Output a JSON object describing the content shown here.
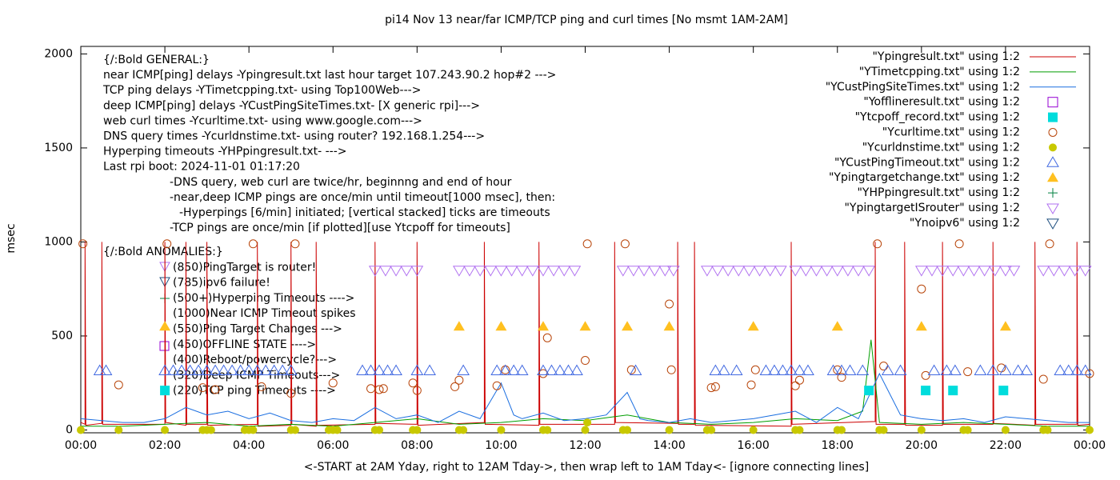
{
  "chart_data": {
    "type": "line",
    "title": "pi14 Nov 13  near/far ICMP/TCP ping and curl times [No msmt 1AM-2AM]",
    "x_label": "<-START at 2AM Yday, right to 12AM Tday->, then wrap left to 1AM Tday<- [ignore connecting lines]",
    "y_label": "msec",
    "xlim": [
      0,
      24
    ],
    "ylim": [
      -15,
      2040
    ],
    "xticks": [
      {
        "value": 0,
        "label": "00:00"
      },
      {
        "value": 2,
        "label": "02:00"
      },
      {
        "value": 4,
        "label": "04:00"
      },
      {
        "value": 6,
        "label": "06:00"
      },
      {
        "value": 8,
        "label": "08:00"
      },
      {
        "value": 10,
        "label": "10:00"
      },
      {
        "value": 12,
        "label": "12:00"
      },
      {
        "value": 14,
        "label": "14:00"
      },
      {
        "value": 16,
        "label": "16:00"
      },
      {
        "value": 18,
        "label": "18:00"
      },
      {
        "value": 20,
        "label": "20:00"
      },
      {
        "value": 22,
        "label": "22:00"
      },
      {
        "value": 24,
        "label": "00:00"
      }
    ],
    "yticks": [
      0,
      500,
      1000,
      1500,
      2000
    ],
    "legend": "top-right",
    "notes": [
      "{/:Bold GENERAL:}",
      "near ICMP[ping] delays -Ypingresult.txt last hour target 107.243.90.2 hop#2 --->",
      "TCP ping delays -YTimetcpping.txt- using Top100Web--->",
      "deep ICMP[ping] delays -YCustPingSiteTimes.txt- [X generic rpi]--->",
      "web curl times -Ycurltime.txt- using www.google.com--->",
      "DNS query times -Ycurldnstime.txt- using router? 192.168.1.254--->",
      "Hyperping timeouts -YHPpingresult.txt- --->",
      "Last rpi boot: 2024-11-01 01:17:20",
      "-DNS query, web curl are twice/hr, beginnng and end of hour",
      "-near,deep ICMP pings are once/min until timeout[1000 msec], then:",
      "-Hyperpings [6/min] initiated; [vertical stacked] ticks are timeouts",
      "-TCP pings are once/min [if plotted][use Ytcpoff for timeouts]"
    ],
    "anomalies": [
      "{/:Bold ANOMALIES:}",
      "(850)PingTarget is router!",
      "(785)ipv6 failure!",
      "(500+)Hyperping Timeouts ---->",
      "(1000)Near ICMP Timeout spikes",
      "(550)Ping Target Changes --->",
      "(450)OFFLINE STATE ---->",
      "(400)Reboot/powercycle?--->",
      "(320)Deep ICMP Timeouts--->",
      "(220)TCP ping Timeouts ---->"
    ],
    "series": [
      {
        "name": "\"Ypingresult.txt\" using 1:2",
        "color": "#cc0000",
        "marker": "line",
        "x": [
          0,
          0.1,
          0.1,
          0.12,
          0.5,
          0.5,
          0.52,
          2.0,
          2.0,
          2.02,
          2.5,
          2.5,
          2.52,
          3.0,
          3.0,
          3.02,
          4.2,
          4.2,
          4.22,
          5.0,
          5.0,
          5.02,
          5.6,
          5.6,
          5.62,
          7.0,
          7.0,
          7.02,
          8.0,
          8.0,
          8.02,
          9.6,
          9.6,
          9.62,
          10.9,
          10.9,
          10.92,
          12.7,
          12.7,
          12.72,
          14.2,
          14.2,
          14.22,
          14.6,
          14.6,
          14.62,
          16.9,
          16.9,
          16.92,
          18.9,
          18.9,
          18.92,
          19.6,
          19.6,
          19.62,
          20.5,
          20.5,
          20.52,
          21.7,
          21.7,
          21.72,
          22.7,
          22.7,
          22.72,
          23.7,
          23.7,
          23.72,
          24
        ],
        "values": [
          40,
          30,
          1000,
          25,
          35,
          1000,
          30,
          30,
          1000,
          40,
          25,
          1000,
          30,
          30,
          1000,
          25,
          30,
          1000,
          20,
          25,
          1000,
          30,
          20,
          1000,
          25,
          30,
          1000,
          35,
          30,
          1000,
          25,
          40,
          1000,
          30,
          25,
          1000,
          30,
          30,
          1000,
          40,
          35,
          1000,
          30,
          30,
          1000,
          25,
          20,
          1000,
          30,
          45,
          1000,
          30,
          30,
          1000,
          25,
          25,
          1000,
          30,
          30,
          1000,
          35,
          25,
          1000,
          30,
          30,
          1000,
          25,
          30
        ]
      },
      {
        "name": "\"YTimetcpping.txt\" using 1:2",
        "color": "#009e00",
        "marker": "line",
        "x": [
          0,
          1,
          2,
          3,
          4,
          5,
          6,
          7,
          8,
          9,
          10,
          11,
          12,
          13,
          14,
          15,
          16,
          17,
          18,
          18.6,
          18.8,
          19,
          20,
          21,
          22,
          23,
          24
        ],
        "values": [
          20,
          20,
          30,
          40,
          20,
          30,
          20,
          40,
          60,
          30,
          40,
          60,
          50,
          80,
          40,
          30,
          40,
          60,
          50,
          100,
          480,
          40,
          30,
          40,
          30,
          20,
          20
        ]
      },
      {
        "name": "\"YCustPingSiteTimes.txt\" using 1:2",
        "color": "#1a6ee0",
        "marker": "line",
        "x": [
          0,
          0.5,
          1,
          1.5,
          2,
          2.5,
          3,
          3.5,
          4,
          4.5,
          5,
          5.5,
          6,
          6.5,
          7,
          7.5,
          8,
          8.5,
          9,
          9.5,
          10,
          10.3,
          10.5,
          11,
          11.5,
          12,
          12.5,
          13,
          13.3,
          13.5,
          14,
          14.5,
          15,
          15.5,
          16,
          16.5,
          17,
          17.5,
          18,
          18.5,
          19,
          19.5,
          20,
          20.5,
          21,
          21.5,
          22,
          22.5,
          23,
          23.5,
          24
        ],
        "values": [
          60,
          50,
          40,
          40,
          60,
          120,
          80,
          100,
          60,
          90,
          50,
          40,
          60,
          50,
          120,
          60,
          80,
          40,
          100,
          60,
          250,
          80,
          60,
          90,
          50,
          60,
          80,
          200,
          60,
          50,
          40,
          60,
          40,
          50,
          60,
          80,
          100,
          40,
          120,
          60,
          300,
          80,
          60,
          50,
          60,
          40,
          70,
          60,
          50,
          40,
          40
        ]
      },
      {
        "name": "\"Yofflineresult.txt\" using 1:2",
        "color": "#9400d3",
        "marker": "square-open",
        "x": [],
        "values": []
      },
      {
        "name": "\"Ytcpoff_record.txt\" using 1:2",
        "color": "#00dcdc",
        "marker": "square",
        "x": [
          2.0,
          18.75,
          20.1,
          20.75,
          21.95
        ],
        "values": [
          210,
          210,
          210,
          210,
          210
        ]
      },
      {
        "name": "\"Ycurltime.txt\" using 1:2",
        "color": "#b8450a",
        "marker": "circle-open",
        "x": [
          0.05,
          0.9,
          2.05,
          2.9,
          3.2,
          4.1,
          4.3,
          5.1,
          5.0,
          6.0,
          6.9,
          7.1,
          7.2,
          7.9,
          8.0,
          8.9,
          9.0,
          9.9,
          10.1,
          11.0,
          11.1,
          12.0,
          12.05,
          12.95,
          13.1,
          14.0,
          14.05,
          15.0,
          15.1,
          15.95,
          16.05,
          17.0,
          17.1,
          18.0,
          18.1,
          18.95,
          19.1,
          20.0,
          20.1,
          20.9,
          21.1,
          21.9,
          22.9,
          23.05,
          24.0
        ],
        "values": [
          990,
          240,
          990,
          225,
          215,
          990,
          230,
          990,
          195,
          250,
          220,
          215,
          220,
          250,
          210,
          230,
          265,
          235,
          320,
          300,
          490,
          370,
          990,
          990,
          320,
          670,
          320,
          225,
          230,
          240,
          320,
          235,
          265,
          320,
          280,
          990,
          340,
          750,
          290,
          990,
          310,
          330,
          270,
          990,
          300
        ]
      },
      {
        "name": "\"Ycurldnstime.txt\" using 1:2",
        "color": "#c8c800",
        "marker": "circle",
        "x": [
          0.0,
          0.9,
          2.0,
          2.9,
          3.0,
          3.1,
          3.9,
          4.0,
          4.1,
          5.0,
          5.1,
          5.9,
          6.0,
          6.1,
          7.0,
          7.1,
          7.9,
          8.0,
          9.0,
          9.1,
          10.0,
          11.0,
          11.1,
          12.0,
          12.05,
          12.9,
          13.0,
          14.0,
          14.9,
          15.0,
          16.0,
          17.0,
          17.1,
          18.0,
          18.1,
          19.0,
          19.1,
          20.0,
          21.0,
          21.1,
          22.0,
          22.9,
          23.0,
          24.0
        ],
        "values": [
          0,
          0,
          0,
          0,
          0,
          0,
          0,
          0,
          0,
          0,
          0,
          0,
          0,
          0,
          0,
          0,
          0,
          0,
          0,
          0,
          0,
          0,
          0,
          0,
          40,
          0,
          0,
          0,
          0,
          0,
          0,
          0,
          0,
          0,
          0,
          0,
          0,
          0,
          0,
          0,
          0,
          0,
          0,
          0
        ]
      },
      {
        "name": "\"YCustPingTimeout.txt\" using 1:2",
        "color": "#4169e1",
        "marker": "triangle-open",
        "x": [
          0.45,
          0.6,
          2.0,
          2.2,
          2.4,
          2.6,
          2.8,
          3.0,
          3.2,
          3.4,
          3.6,
          3.8,
          4.0,
          4.2,
          4.4,
          4.6,
          4.8,
          5.0,
          6.7,
          6.9,
          7.1,
          7.3,
          7.5,
          8.0,
          8.3,
          9.1,
          9.9,
          10.1,
          10.3,
          10.5,
          11.0,
          11.2,
          11.4,
          11.6,
          11.8,
          13.2,
          15.1,
          15.3,
          15.6,
          16.3,
          16.5,
          16.7,
          16.9,
          17.1,
          17.3,
          17.9,
          18.1,
          18.3,
          18.6,
          19.2,
          19.5,
          20.3,
          20.6,
          20.8,
          21.4,
          21.7,
          22.0,
          22.3,
          22.5,
          23.3,
          23.5,
          23.7,
          23.9
        ],
        "values": [
          315,
          315,
          315,
          315,
          315,
          315,
          315,
          315,
          315,
          315,
          315,
          315,
          315,
          315,
          315,
          315,
          315,
          315,
          315,
          315,
          315,
          315,
          315,
          315,
          315,
          315,
          315,
          315,
          315,
          315,
          315,
          315,
          315,
          315,
          315,
          315,
          315,
          315,
          315,
          315,
          315,
          315,
          315,
          315,
          315,
          315,
          315,
          315,
          315,
          315,
          315,
          315,
          315,
          315,
          315,
          315,
          315,
          315,
          315,
          315,
          315,
          315,
          315
        ]
      },
      {
        "name": "\"Ypingtargetchange.txt\" using 1:2",
        "color": "#ffc020",
        "marker": "triangle",
        "x": [
          2.0,
          9.0,
          10.0,
          11.0,
          12.0,
          13.0,
          14.0,
          16.0,
          18.0,
          20.0,
          22.0
        ],
        "values": [
          550,
          550,
          550,
          550,
          550,
          550,
          550,
          550,
          550,
          550,
          550
        ]
      },
      {
        "name": "\"YHPpingresult.txt\" using 1:2",
        "color": "#008040",
        "marker": "plus",
        "x": [],
        "values": []
      },
      {
        "name": "\"YpingtargetISrouter\" using 1:2",
        "color": "#b070f0",
        "marker": "triangle-down-open",
        "x": [
          7.0,
          7.25,
          7.5,
          7.75,
          8.0,
          9.0,
          9.25,
          9.5,
          9.75,
          10.0,
          10.25,
          10.5,
          10.75,
          11.0,
          11.25,
          11.5,
          11.75,
          12.9,
          13.15,
          13.4,
          13.65,
          13.9,
          14.1,
          14.9,
          15.15,
          15.4,
          15.65,
          15.9,
          16.15,
          16.4,
          16.65,
          17.0,
          17.25,
          17.5,
          17.75,
          18.0,
          18.25,
          18.5,
          18.75,
          20.0,
          20.25,
          20.5,
          20.75,
          21.0,
          21.25,
          21.5,
          21.75,
          22.0,
          22.2,
          22.9,
          23.15,
          23.4,
          23.65,
          23.9
        ],
        "values": [
          850,
          850,
          850,
          850,
          850,
          850,
          850,
          850,
          850,
          850,
          850,
          850,
          850,
          850,
          850,
          850,
          850,
          850,
          850,
          850,
          850,
          850,
          850,
          850,
          850,
          850,
          850,
          850,
          850,
          850,
          850,
          850,
          850,
          850,
          850,
          850,
          850,
          850,
          850,
          850,
          850,
          850,
          850,
          850,
          850,
          850,
          850,
          850,
          850,
          850,
          850,
          850,
          850,
          850
        ]
      },
      {
        "name": "\"Ynoipv6\" using 1:2",
        "color": "#1f4f7f",
        "marker": "triangle-down-open",
        "x": [],
        "values": []
      }
    ]
  }
}
